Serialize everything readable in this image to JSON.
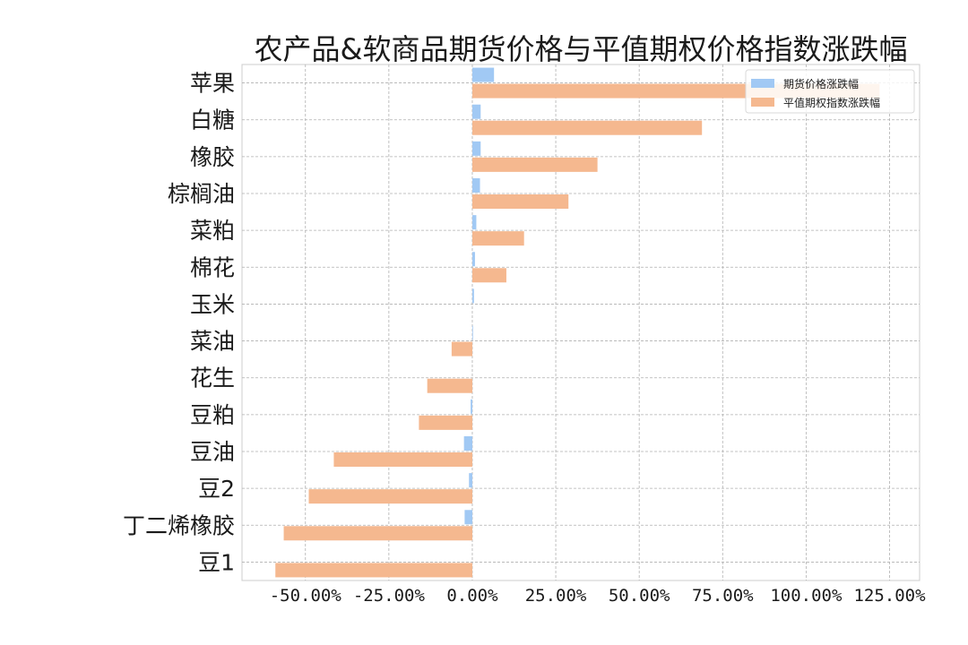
{
  "chart_data": {
    "type": "bar",
    "orientation": "horizontal",
    "title": "农产品&软商品期货价格与平值期权价格指数涨跌幅",
    "xlabel": "",
    "ylabel": "",
    "categories": [
      "苹果",
      "白糖",
      "橡胶",
      "棕榈油",
      "菜粕",
      "棉花",
      "玉米",
      "菜油",
      "花生",
      "豆粕",
      "豆油",
      "豆2",
      "丁二烯橡胶",
      "豆1"
    ],
    "series": [
      {
        "name": "期货价格涨跌幅",
        "color": "#a1c9f4",
        "values": [
          6.5,
          2.5,
          2.5,
          2.3,
          1.2,
          0.8,
          0.5,
          0.2,
          0.0,
          -0.5,
          -2.5,
          -1.0,
          -2.3,
          0.0
        ]
      },
      {
        "name": "平值期权指数涨跌幅",
        "color": "#f5b88f",
        "values": [
          122,
          68.8,
          37.5,
          28.8,
          15.5,
          10.2,
          0.0,
          -6.2,
          -13.5,
          -16.0,
          -41.5,
          -49.0,
          -56.5,
          -59.0
        ]
      }
    ],
    "xlim": [
      -69,
      134
    ],
    "xticks": [
      -50,
      -25,
      0,
      25,
      50,
      75,
      100,
      125
    ],
    "xtick_labels": [
      "-50.00%",
      "-25.00%",
      "0.00%",
      "25.00%",
      "50.00%",
      "75.00%",
      "100.00%",
      "125.00%"
    ],
    "grid": true,
    "legend_position": "top-right"
  }
}
